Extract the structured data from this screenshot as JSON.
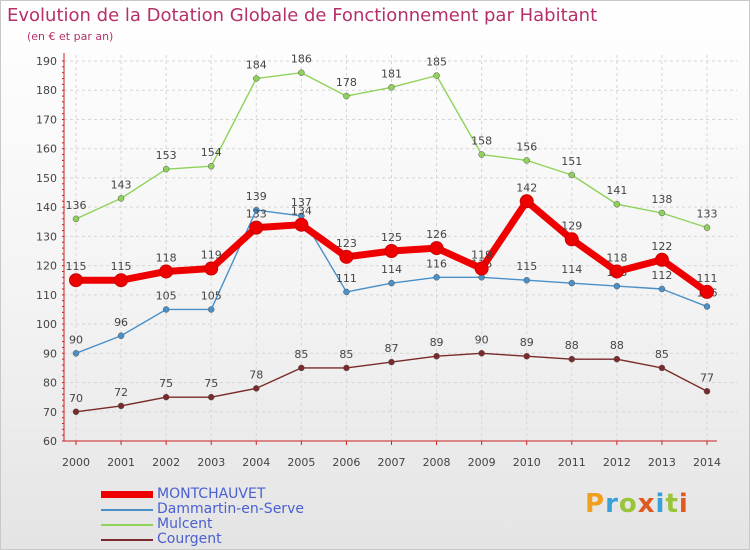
{
  "header": {
    "title": "Evolution de la Dotation Globale de Fonctionnement par Habitant",
    "subtitle": "(en € et par an)"
  },
  "logo": {
    "letters": [
      "P",
      "r",
      "o",
      "x",
      "i",
      "t",
      "i"
    ],
    "colors": [
      "#f0a020",
      "#3aa0d8",
      "#9ac43a",
      "#e05a20",
      "#3aa0d8",
      "#9ac43a",
      "#e05a20"
    ]
  },
  "colors": {
    "axis": "#cc2222",
    "grid": "#d6d6d6",
    "label": "#444444"
  },
  "chart_data": {
    "type": "line",
    "title": "Evolution de la Dotation Globale de Fonctionnement par Habitant",
    "subtitle": "(en € et par an)",
    "xlabel": "",
    "ylabel": "",
    "ylim": [
      60,
      190
    ],
    "yticks": [
      60,
      70,
      80,
      90,
      100,
      110,
      120,
      130,
      140,
      150,
      160,
      170,
      180,
      190
    ],
    "x": [
      "2000",
      "2001",
      "2002",
      "2003",
      "2004",
      "2005",
      "2006",
      "2007",
      "2008",
      "2009",
      "2010",
      "2011",
      "2012",
      "2013",
      "2014"
    ],
    "grid": true,
    "legend_position": "bottom-left",
    "series": [
      {
        "name": "Courgent",
        "color": "#7a2a2a",
        "values": [
          70,
          72,
          75,
          75,
          78,
          85,
          85,
          87,
          89,
          90,
          89,
          88,
          88,
          85,
          77
        ]
      },
      {
        "name": "Mulcent",
        "color": "#8fd25a",
        "values": [
          136,
          143,
          153,
          154,
          184,
          186,
          178,
          181,
          185,
          158,
          156,
          151,
          141,
          138,
          133
        ]
      },
      {
        "name": "Dammartin-en-Serve",
        "color": "#4a90c8",
        "values": [
          90,
          96,
          105,
          105,
          139,
          137,
          111,
          114,
          116,
          116,
          115,
          114,
          113,
          112,
          106
        ]
      },
      {
        "name": "MONTCHAUVET",
        "color": "#ee0000",
        "values": [
          115,
          115,
          118,
          119,
          133,
          134,
          123,
          125,
          126,
          119,
          142,
          129,
          118,
          122,
          111
        ]
      }
    ],
    "legend": [
      "MONTCHAUVET",
      "Dammartin-en-Serve",
      "Mulcent",
      "Courgent"
    ]
  }
}
